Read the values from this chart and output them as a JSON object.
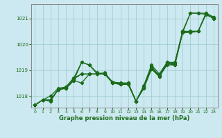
{
  "title": "Graphe pression niveau de la mer (hPa)",
  "background_color": "#cce8f0",
  "plot_bg_color": "#cce8f0",
  "line_color": "#1a6b1a",
  "grid_color": "#99cccc",
  "xlabel": "Graphe pression niveau de la mer (hPa)",
  "ylim": [
    1017.55,
    1021.55
  ],
  "xlim": [
    -0.5,
    23.5
  ],
  "yticks": [
    1018,
    1019,
    1020,
    1021
  ],
  "xticks": [
    0,
    1,
    2,
    3,
    4,
    5,
    6,
    7,
    8,
    9,
    10,
    11,
    12,
    13,
    14,
    15,
    16,
    17,
    18,
    19,
    20,
    21,
    22,
    23
  ],
  "series": [
    [
      1017.65,
      1017.85,
      1017.85,
      1018.25,
      1018.3,
      1018.6,
      1019.3,
      1019.2,
      1018.85,
      1018.85,
      1018.5,
      1018.45,
      1018.5,
      1017.8,
      1018.35,
      1019.15,
      1018.75,
      1019.2,
      1019.2,
      1020.45,
      1021.2,
      1021.2,
      1021.15,
      1021.0
    ],
    [
      1017.65,
      1017.85,
      1017.8,
      1018.25,
      1018.3,
      1018.65,
      1018.85,
      1018.85,
      1018.85,
      1018.85,
      1018.5,
      1018.45,
      1018.45,
      1017.8,
      1018.3,
      1019.05,
      1018.75,
      1019.25,
      1019.25,
      1020.45,
      1020.5,
      1020.5,
      1021.15,
      1021.0
    ],
    [
      1017.65,
      1017.85,
      1017.85,
      1018.25,
      1018.35,
      1018.7,
      1018.85,
      1018.85,
      1018.85,
      1018.9,
      1018.5,
      1018.5,
      1018.5,
      1017.8,
      1018.35,
      1019.1,
      1018.8,
      1019.3,
      1019.3,
      1020.5,
      1020.5,
      1020.5,
      1021.2,
      1021.05
    ],
    [
      1017.65,
      1017.85,
      1018.0,
      1018.3,
      1018.35,
      1018.7,
      1019.3,
      1019.2,
      1018.9,
      1018.85,
      1018.55,
      1018.5,
      1018.5,
      1017.8,
      1018.4,
      1019.2,
      1018.85,
      1019.3,
      1019.25,
      1020.5,
      1021.2,
      1021.2,
      1021.2,
      1021.05
    ],
    [
      1017.65,
      1017.85,
      1017.85,
      1018.25,
      1018.3,
      1018.6,
      1018.5,
      1018.85,
      1018.85,
      1018.85,
      1018.5,
      1018.45,
      1018.45,
      1017.8,
      1018.3,
      1019.05,
      1018.75,
      1019.25,
      1019.2,
      1020.45,
      1020.45,
      1020.5,
      1021.15,
      1021.0
    ]
  ],
  "marker": "D",
  "markersize": 2.2,
  "linewidth": 0.9
}
